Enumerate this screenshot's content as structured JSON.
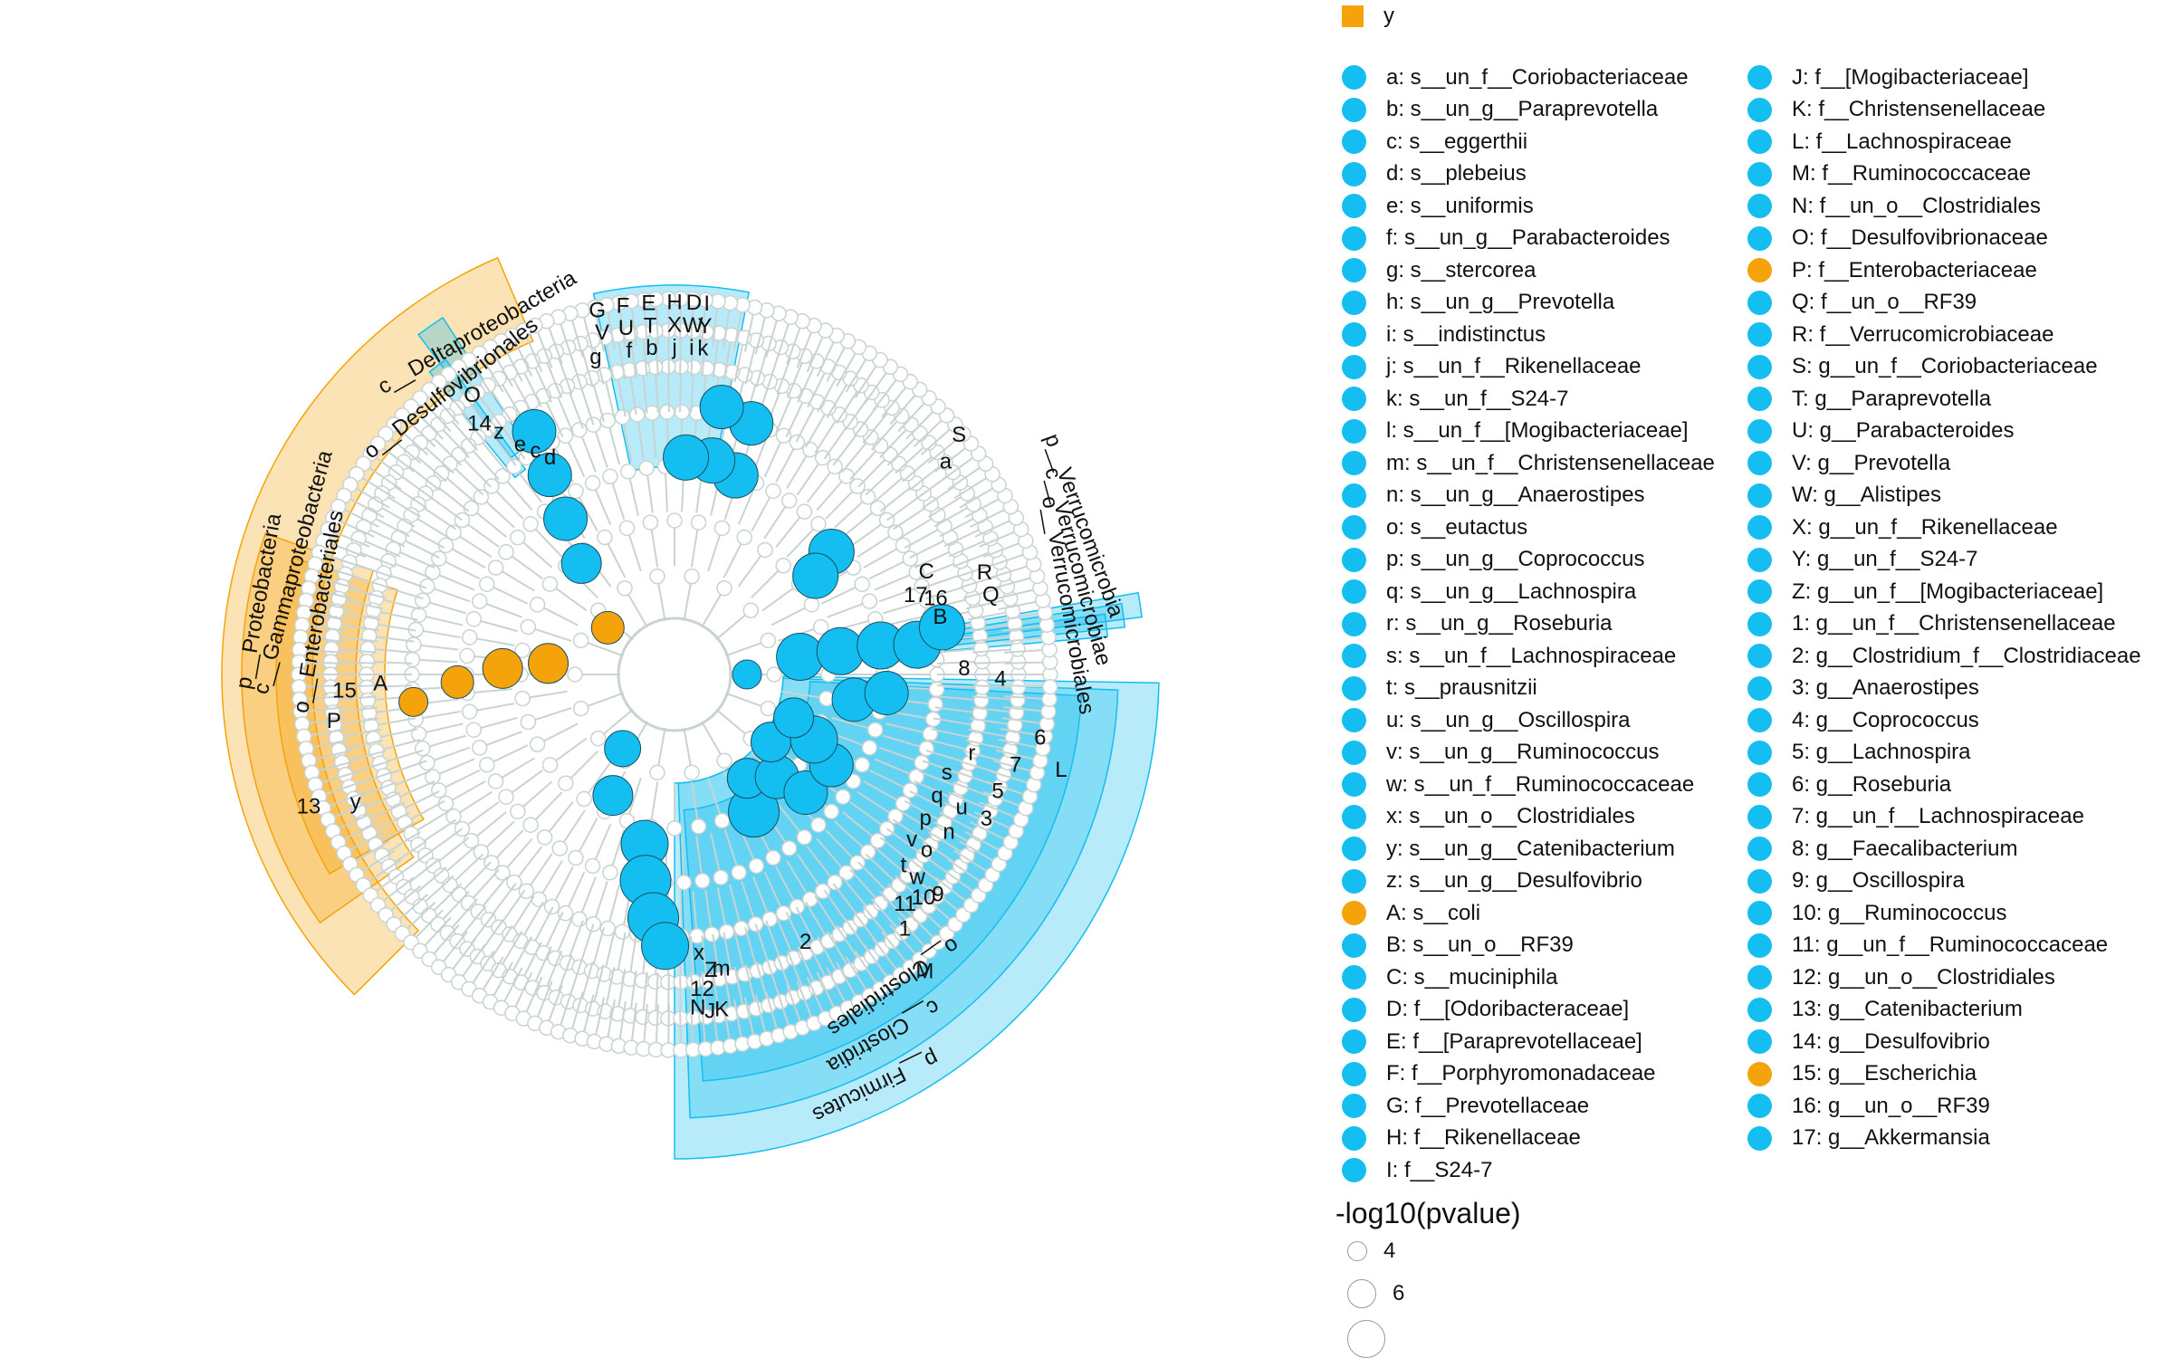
{
  "colors": {
    "enriched_y": "#f5a30a",
    "enriched_x": "#14bef0",
    "tree_gray": "#c8d3d2"
  },
  "legend": {
    "group_label": "y",
    "entries": [
      {
        "label": "a: s__un_f__Coriobacteriaceae",
        "group": "x"
      },
      {
        "label": "b: s__un_g__Paraprevotella",
        "group": "x"
      },
      {
        "label": "c: s__eggerthii",
        "group": "x"
      },
      {
        "label": "d: s__plebeius",
        "group": "x"
      },
      {
        "label": "e: s__uniformis",
        "group": "x"
      },
      {
        "label": "f: s__un_g__Parabacteroides",
        "group": "x"
      },
      {
        "label": "g: s__stercorea",
        "group": "x"
      },
      {
        "label": "h: s__un_g__Prevotella",
        "group": "x"
      },
      {
        "label": "i: s__indistinctus",
        "group": "x"
      },
      {
        "label": "j: s__un_f__Rikenellaceae",
        "group": "x"
      },
      {
        "label": "k: s__un_f__S24-7",
        "group": "x"
      },
      {
        "label": "l: s__un_f__[Mogibacteriaceae]",
        "group": "x"
      },
      {
        "label": "m: s__un_f__Christensenellaceae",
        "group": "x"
      },
      {
        "label": "n: s__un_g__Anaerostipes",
        "group": "x"
      },
      {
        "label": "o: s__eutactus",
        "group": "x"
      },
      {
        "label": "p: s__un_g__Coprococcus",
        "group": "x"
      },
      {
        "label": "q: s__un_g__Lachnospira",
        "group": "x"
      },
      {
        "label": "r: s__un_g__Roseburia",
        "group": "x"
      },
      {
        "label": "s: s__un_f__Lachnospiraceae",
        "group": "x"
      },
      {
        "label": "t: s__prausnitzii",
        "group": "x"
      },
      {
        "label": "u: s__un_g__Oscillospira",
        "group": "x"
      },
      {
        "label": "v: s__un_g__Ruminococcus",
        "group": "x"
      },
      {
        "label": "w: s__un_f__Ruminococcaceae",
        "group": "x"
      },
      {
        "label": "x: s__un_o__Clostridiales",
        "group": "x"
      },
      {
        "label": "y: s__un_g__Catenibacterium",
        "group": "x"
      },
      {
        "label": "z: s__un_g__Desulfovibrio",
        "group": "x"
      },
      {
        "label": "A: s__coli",
        "group": "y"
      },
      {
        "label": "B: s__un_o__RF39",
        "group": "x"
      },
      {
        "label": "C: s__muciniphila",
        "group": "x"
      },
      {
        "label": "D: f__[Odoribacteraceae]",
        "group": "x"
      },
      {
        "label": "E: f__[Paraprevotellaceae]",
        "group": "x"
      },
      {
        "label": "F: f__Porphyromonadaceae",
        "group": "x"
      },
      {
        "label": "G: f__Prevotellaceae",
        "group": "x"
      },
      {
        "label": "H: f__Rikenellaceae",
        "group": "x"
      },
      {
        "label": "I: f__S24-7",
        "group": "x"
      },
      {
        "label": "J: f__[Mogibacteriaceae]",
        "group": "x"
      },
      {
        "label": "K: f__Christensenellaceae",
        "group": "x"
      },
      {
        "label": "L: f__Lachnospiraceae",
        "group": "x"
      },
      {
        "label": "M: f__Ruminococcaceae",
        "group": "x"
      },
      {
        "label": "N: f__un_o__Clostridiales",
        "group": "x"
      },
      {
        "label": "O: f__Desulfovibrionaceae",
        "group": "x"
      },
      {
        "label": "P: f__Enterobacteriaceae",
        "group": "y"
      },
      {
        "label": "Q: f__un_o__RF39",
        "group": "x"
      },
      {
        "label": "R: f__Verrucomicrobiaceae",
        "group": "x"
      },
      {
        "label": "S: g__un_f__Coriobacteriaceae",
        "group": "x"
      },
      {
        "label": "T: g__Paraprevotella",
        "group": "x"
      },
      {
        "label": "U: g__Parabacteroides",
        "group": "x"
      },
      {
        "label": "V: g__Prevotella",
        "group": "x"
      },
      {
        "label": "W: g__Alistipes",
        "group": "x"
      },
      {
        "label": "X: g__un_f__Rikenellaceae",
        "group": "x"
      },
      {
        "label": "Y: g__un_f__S24-7",
        "group": "x"
      },
      {
        "label": "Z: g__un_f__[Mogibacteriaceae]",
        "group": "x"
      },
      {
        "label": "1: g__un_f__Christensenellaceae",
        "group": "x"
      },
      {
        "label": "2: g__Clostridium_f__Clostridiaceae",
        "group": "x"
      },
      {
        "label": "3: g__Anaerostipes",
        "group": "x"
      },
      {
        "label": "4: g__Coprococcus",
        "group": "x"
      },
      {
        "label": "5: g__Lachnospira",
        "group": "x"
      },
      {
        "label": "6: g__Roseburia",
        "group": "x"
      },
      {
        "label": "7: g__un_f__Lachnospiraceae",
        "group": "x"
      },
      {
        "label": "8: g__Faecalibacterium",
        "group": "x"
      },
      {
        "label": "9: g__Oscillospira",
        "group": "x"
      },
      {
        "label": "10: g__Ruminococcus",
        "group": "x"
      },
      {
        "label": "11: g__un_f__Ruminococcaceae",
        "group": "x"
      },
      {
        "label": "12: g__un_o__Clostridiales",
        "group": "x"
      },
      {
        "label": "13: g__Catenibacterium",
        "group": "x"
      },
      {
        "label": "14: g__Desulfovibrio",
        "group": "x"
      },
      {
        "label": "15: g__Escherichia",
        "group": "y"
      },
      {
        "label": "16: g__un_o__RF39",
        "group": "x"
      },
      {
        "label": "17: g__Akkermansia",
        "group": "x"
      }
    ],
    "size_title": "-log10(pvalue)",
    "size_items": [
      {
        "label": "4",
        "value": 4
      },
      {
        "label": "6",
        "value": 6
      },
      {
        "label": "",
        "value": 8
      }
    ]
  },
  "tree": {
    "sectors": [
      {
        "id": "proteobacteria",
        "group": "y",
        "start": 113,
        "end": 225,
        "r1": 400,
        "r2": 500,
        "label": "p__Proteobacteria",
        "label_angle": 170,
        "label_r": 465
      },
      {
        "id": "gammaproteobacteria",
        "group": "y",
        "start": 161,
        "end": 215,
        "r1": 352,
        "r2": 478,
        "label": "c__Gammaproteobacteria",
        "label_angle": 165,
        "label_r": 435
      },
      {
        "id": "enterobacteriales",
        "group": "y",
        "start": 163,
        "end": 210,
        "r1": 320,
        "r2": 440,
        "label": "o__Enterobacteriales",
        "label_angle": 170,
        "label_r": 398
      },
      {
        "id": "deltaproteobacteria",
        "group": "x",
        "start": 123,
        "end": 127,
        "r1": 300,
        "r2": 470,
        "label": "c__Deltaproteobacteria",
        "label_angle": 120,
        "label_r": 435
      },
      {
        "id": "desulfovibrionales",
        "group": "x",
        "start": 126,
        "end": 129,
        "r1": 280,
        "r2": 430,
        "label": "o__Desulfovibrionales",
        "label_angle": 128,
        "label_r": 400
      },
      {
        "id": "bacteroidetes_block",
        "group": "x",
        "start": 79,
        "end": 102,
        "r1": 230,
        "r2": 430,
        "label": "",
        "label_angle": 90,
        "label_r": 400
      },
      {
        "id": "firmicutes",
        "group": "x",
        "start": 270,
        "end": 359,
        "r1": 120,
        "r2": 535,
        "label": "p__Firmicutes",
        "label_angle": 296,
        "label_r": 505
      },
      {
        "id": "clostridia",
        "group": "x",
        "start": 272,
        "end": 358,
        "r1": 120,
        "r2": 490,
        "label": "c__Clostridia",
        "label_angle": 300,
        "label_r": 460
      },
      {
        "id": "clostridiales",
        "group": "x",
        "start": 274,
        "end": 357,
        "r1": 150,
        "r2": 450,
        "label": "o__Clostridiales",
        "label_angle": 305,
        "label_r": 420
      },
      {
        "id": "verrucomicrobia",
        "group": "x",
        "start": 7,
        "end": 10,
        "r1": 300,
        "r2": 520,
        "label": "p__Verrucomicrobia",
        "label_angle": 20,
        "label_r": 480
      },
      {
        "id": "verrucomicrobiae",
        "group": "x",
        "start": 6,
        "end": 9,
        "r1": 300,
        "r2": 500,
        "label": "c__Verrucomicrobiae",
        "label_angle": 15,
        "label_r": 460
      },
      {
        "id": "verrucomicrobiales",
        "group": "x",
        "start": 5,
        "end": 8,
        "r1": 300,
        "r2": 480,
        "label": "o__Verrucomicrobiales",
        "label_angle": 10,
        "label_r": 440
      }
    ],
    "letter_labels": [
      "G",
      "F",
      "E",
      "H",
      "D",
      "I",
      "V",
      "U",
      "T",
      "X",
      "W",
      "Y",
      "g",
      "f",
      "b",
      "j",
      "i",
      "k",
      "O",
      "14",
      "z",
      "e",
      "c",
      "d",
      "A",
      "15",
      "P",
      "13",
      "y",
      "S",
      "a",
      "C",
      "17",
      "16",
      "B",
      "R",
      "Q",
      "8",
      "4",
      "L",
      "6",
      "7",
      "5",
      "3",
      "r",
      "s",
      "q",
      "p",
      "o",
      "t",
      "u",
      "n",
      "v",
      "w",
      "10",
      "11",
      "9",
      "1",
      "M",
      "2",
      "Z",
      "m",
      "x",
      "12",
      "N",
      "J",
      "K"
    ]
  }
}
